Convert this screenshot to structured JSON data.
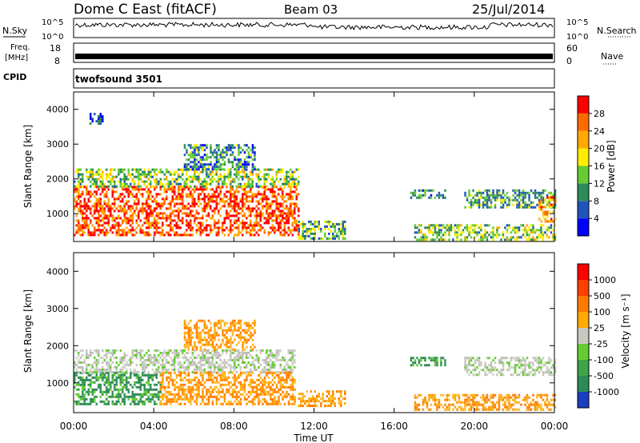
{
  "header": {
    "title": "Dome C East (fitACF)",
    "beam": "Beam 03",
    "date": "25/Jul/2014"
  },
  "top_panels": {
    "nsky": {
      "label": "N.Sky",
      "ticks_left": [
        "10^5",
        "10^0"
      ],
      "ticks_right": [
        "10^5",
        "10^0"
      ],
      "right_label": "N.Search"
    },
    "freq": {
      "label_line1": "Freq.",
      "label_line2": "[MHz]",
      "ticks_left": [
        "18",
        "8"
      ],
      "ticks_right": [
        "60",
        "0"
      ],
      "right_label": "Nave"
    },
    "cpid": {
      "label": "CPID",
      "program": "twofsound 3501"
    }
  },
  "time_axis": {
    "label": "Time UT",
    "ticks": [
      "00:00",
      "04:00",
      "08:00",
      "12:00",
      "16:00",
      "20:00",
      "00:00"
    ]
  },
  "chart_data": [
    {
      "type": "heatmap",
      "name": "power",
      "ylabel": "Slant Range [km]",
      "yticks": [
        1000,
        2000,
        3000,
        4000
      ],
      "ylim": [
        200,
        4500
      ],
      "xlim": [
        0,
        24
      ],
      "colorbar": {
        "label": "Power [dB]",
        "ticks": [
          "4",
          "8",
          "12",
          "16",
          "20",
          "24",
          "28"
        ],
        "colors": [
          "#0000ff",
          "#2255bb",
          "#2e8b57",
          "#66cc33",
          "#ffee00",
          "#ffaa00",
          "#ff6a00",
          "#ff0000"
        ]
      },
      "regions": [
        {
          "t0": 0.0,
          "t1": 11.2,
          "r0": 400,
          "r1": 1800,
          "level": 0.85
        },
        {
          "t0": 0.0,
          "t1": 11.2,
          "r0": 1800,
          "r1": 2300,
          "level": 0.45
        },
        {
          "t0": 5.5,
          "t1": 9.0,
          "r0": 2300,
          "r1": 3000,
          "level": 0.3
        },
        {
          "t0": 11.2,
          "t1": 13.5,
          "r0": 300,
          "r1": 800,
          "level": 0.4
        },
        {
          "t0": 16.8,
          "t1": 18.5,
          "r0": 1450,
          "r1": 1700,
          "level": 0.3
        },
        {
          "t0": 19.5,
          "t1": 24.0,
          "r0": 1200,
          "r1": 1700,
          "level": 0.35
        },
        {
          "t0": 17.0,
          "t1": 24.0,
          "r0": 250,
          "r1": 700,
          "level": 0.45
        },
        {
          "t0": 23.2,
          "t1": 24.0,
          "r0": 800,
          "r1": 1500,
          "level": 0.8
        },
        {
          "t0": 0.8,
          "t1": 1.4,
          "r0": 3600,
          "r1": 3900,
          "level": 0.15
        }
      ]
    },
    {
      "type": "heatmap",
      "name": "velocity",
      "ylabel": "Slant Range [km]",
      "yticks": [
        1000,
        2000,
        3000,
        4000
      ],
      "ylim": [
        200,
        4500
      ],
      "xlim": [
        0,
        24
      ],
      "colorbar": {
        "label": "Velocity [m s⁻¹]",
        "ticks": [
          "1000",
          "500",
          "100",
          "25",
          "-25",
          "-100",
          "-500",
          "-1000"
        ],
        "colors": [
          "#1a3fbf",
          "#2e8b57",
          "#3da44a",
          "#66cc33",
          "#c8c8c0",
          "#ffaa00",
          "#ff7a00",
          "#ff4000",
          "#ff0000"
        ]
      },
      "regions": [
        {
          "t0": 0.0,
          "t1": 4.3,
          "r0": 400,
          "r1": 1300,
          "level": "green"
        },
        {
          "t0": 0.0,
          "t1": 11.0,
          "r0": 1300,
          "r1": 1900,
          "level": "gray"
        },
        {
          "t0": 4.3,
          "t1": 11.0,
          "r0": 400,
          "r1": 1300,
          "level": "orange"
        },
        {
          "t0": 5.5,
          "t1": 9.0,
          "r0": 1900,
          "r1": 2700,
          "level": "orange"
        },
        {
          "t0": 11.2,
          "t1": 13.5,
          "r0": 400,
          "r1": 800,
          "level": "orange"
        },
        {
          "t0": 16.8,
          "t1": 18.5,
          "r0": 1450,
          "r1": 1700,
          "level": "green"
        },
        {
          "t0": 19.5,
          "t1": 24.0,
          "r0": 1200,
          "r1": 1700,
          "level": "gray"
        },
        {
          "t0": 17.0,
          "t1": 24.0,
          "r0": 250,
          "r1": 700,
          "level": "orange"
        }
      ]
    }
  ],
  "colors": {
    "axis": "#000000",
    "background": "#ffffff"
  }
}
